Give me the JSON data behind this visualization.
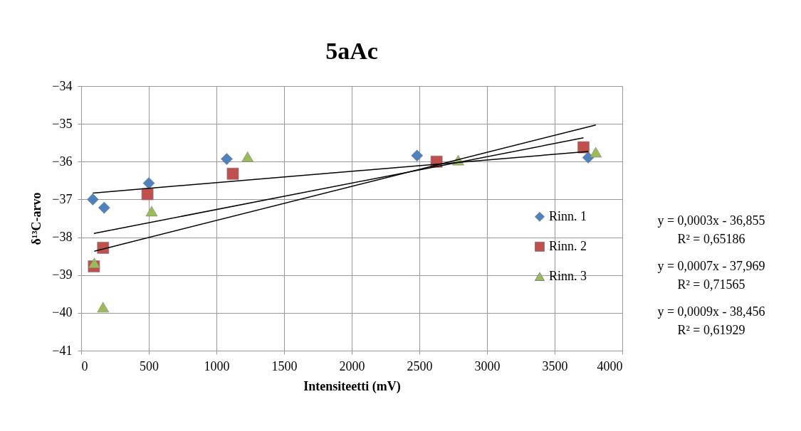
{
  "chart_data": {
    "type": "scatter",
    "title": "5aAc",
    "xlabel": "Intensiteetti (mV)",
    "ylabel": "δ¹³C-arvo",
    "xlim": [
      0,
      4000
    ],
    "xticks": [
      0,
      500,
      1000,
      1500,
      2000,
      2500,
      3000,
      3500,
      4000
    ],
    "ylim": [
      -41,
      -34
    ],
    "yticks": [
      -41,
      -40,
      -39,
      -38,
      -37,
      -36,
      -35,
      -34
    ],
    "grid": true,
    "legend": "right",
    "series": [
      {
        "name": "Rinn. 1",
        "marker": "diamond",
        "color": "#4f81bd",
        "x": [
          86,
          170,
          500,
          1076,
          2483,
          3748
        ],
        "values": [
          -37.0,
          -37.22,
          -36.57,
          -35.93,
          -35.84,
          -35.89
        ]
      },
      {
        "name": "Rinn. 2",
        "marker": "square",
        "color": "#c0504d",
        "x": [
          94,
          162,
          490,
          1121,
          2627,
          3713
        ],
        "values": [
          -38.77,
          -38.28,
          -36.86,
          -36.32,
          -36.0,
          -35.62
        ]
      },
      {
        "name": "Rinn. 3",
        "marker": "triangle",
        "color": "#9bbb59",
        "x": [
          97,
          162,
          521,
          1230,
          2787,
          3804
        ],
        "values": [
          -38.68,
          -39.85,
          -37.31,
          -35.87,
          -35.96,
          -35.75
        ]
      },
      {
        "type": "line",
        "color": "#000000",
        "line_style": "solid",
        "x": [
          86,
          3748
        ],
        "values": [
          -36.83,
          -35.73
        ]
      },
      {
        "type": "line",
        "color": "#000000",
        "line_style": "solid",
        "x": [
          94,
          3713
        ],
        "values": [
          -37.9,
          -35.37
        ]
      },
      {
        "type": "line",
        "color": "#000000",
        "line_style": "solid",
        "x": [
          97,
          3804
        ],
        "values": [
          -38.37,
          -35.03
        ]
      }
    ],
    "annotations": [
      "y = 0,0003x - 36,855",
      "R² = 0,65186",
      "y = 0,0007x - 37,969",
      "R² = 0,71565",
      "y = 0,0009x - 38,456",
      "R² = 0,61929"
    ]
  }
}
